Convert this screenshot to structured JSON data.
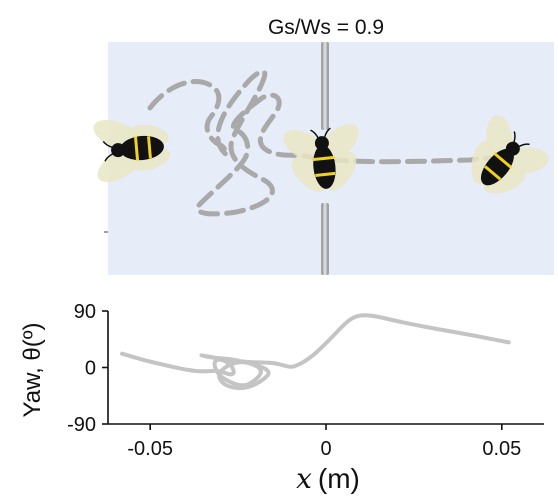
{
  "figure": {
    "title": "Gs/Ws = 0.9"
  },
  "arena": {
    "background_color": "#e6ecf8",
    "path_color": "#a9a9a9",
    "gap_post_color": "#a3a3a3",
    "bee_body_color": "#111111",
    "bee_stripe_color": "#f2d21e",
    "bee_wing_color": "#e9e6c4",
    "icons": [
      "bee-icon",
      "bee-icon",
      "bee-icon"
    ]
  },
  "chart_data": {
    "type": "line",
    "xlabel_var": "x",
    "xlabel_unit": "(m)",
    "ylabel": "Yaw, θ(º)",
    "xlim": [
      -0.062,
      0.062
    ],
    "ylim": [
      -90,
      90
    ],
    "xticks": [
      -0.05,
      0,
      0.05
    ],
    "xtick_labels": [
      "-0.05",
      "0",
      "0.05"
    ],
    "yticks": [
      90,
      0,
      -90
    ],
    "ytick_labels": [
      "90",
      "0",
      "-90"
    ],
    "line_color": "#c4c4c4",
    "series": [
      {
        "x": [
          -0.058,
          -0.052,
          -0.046,
          -0.041,
          -0.037,
          -0.034,
          -0.031,
          -0.029,
          -0.027,
          -0.026,
          -0.027,
          -0.03,
          -0.032,
          -0.031,
          -0.027,
          -0.023,
          -0.02,
          -0.018,
          -0.02,
          -0.024,
          -0.028,
          -0.031,
          -0.029,
          -0.025,
          -0.021,
          -0.018,
          -0.016,
          -0.017,
          -0.02,
          -0.024,
          -0.028,
          -0.033,
          -0.036,
          -0.034,
          -0.03,
          -0.025,
          -0.02,
          -0.016,
          -0.013,
          -0.01,
          -0.008,
          -0.006,
          -0.004,
          -0.002,
          0.001,
          0.004,
          0.007,
          0.01,
          0.014,
          0.02,
          0.027,
          0.035,
          0.043,
          0.052
        ],
        "y": [
          22,
          12,
          4,
          -2,
          -6,
          -6,
          -5,
          -8,
          -12,
          -8,
          5,
          14,
          10,
          -10,
          -25,
          -30,
          -20,
          -6,
          4,
          10,
          4,
          -12,
          -28,
          -34,
          -30,
          -20,
          -10,
          -2,
          4,
          10,
          14,
          16,
          20,
          18,
          14,
          10,
          8,
          8,
          5,
          0,
          4,
          10,
          18,
          28,
          44,
          62,
          78,
          84,
          82,
          74,
          66,
          58,
          50,
          40
        ]
      }
    ]
  }
}
